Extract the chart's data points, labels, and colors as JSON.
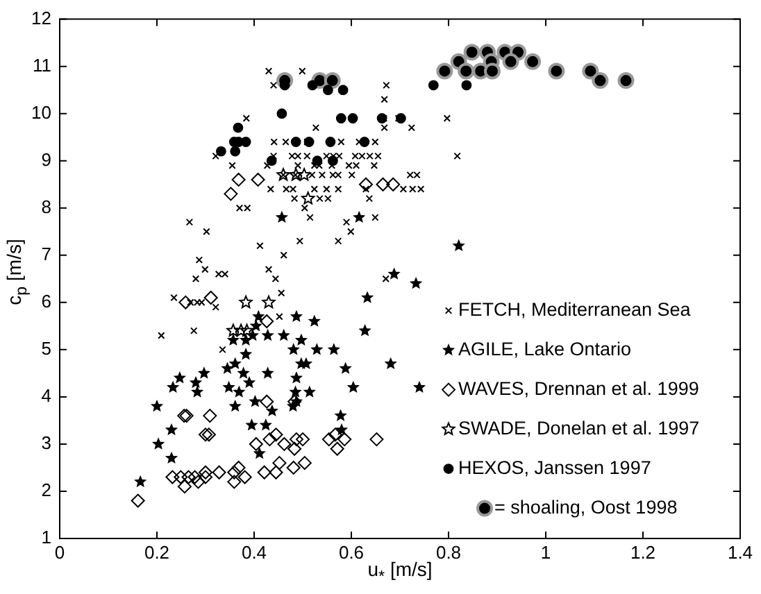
{
  "chart_data": {
    "type": "scatter",
    "xlabel": "u$_{*}$ [m/s]",
    "ylabel": "c$_{p}$ [m/s]",
    "xlim": [
      0,
      1.4
    ],
    "xticks": [
      0,
      0.2,
      0.4,
      0.6,
      0.8,
      1,
      1.2,
      1.4
    ],
    "ylim": [
      1,
      12
    ],
    "yticks": [
      1,
      2,
      3,
      4,
      5,
      6,
      7,
      8,
      9,
      10,
      11,
      12
    ],
    "legend": "right",
    "series": [
      {
        "name": "FETCH, Mediterranean Sea",
        "color": "#000000",
        "marker": "cross",
        "x": [
          0.43,
          0.499,
          0.44,
          0.672,
          0.668,
          0.384,
          0.667,
          0.697,
          0.797,
          0.527,
          0.668,
          0.724,
          0.441,
          0.465,
          0.509,
          0.579,
          0.616,
          0.649,
          0.321,
          0.44,
          0.478,
          0.49,
          0.509,
          0.549,
          0.563,
          0.575,
          0.608,
          0.622,
          0.638,
          0.655,
          0.818,
          0.355,
          0.427,
          0.49,
          0.524,
          0.534,
          0.56,
          0.595,
          0.61,
          0.647,
          0.46,
          0.485,
          0.519,
          0.54,
          0.562,
          0.573,
          0.601,
          0.721,
          0.735,
          0.434,
          0.466,
          0.48,
          0.524,
          0.549,
          0.573,
          0.63,
          0.707,
          0.726,
          0.743,
          0.483,
          0.535,
          0.552,
          0.637,
          0.37,
          0.386,
          0.504,
          0.515,
          0.649,
          0.59,
          0.599,
          0.267,
          0.302,
          0.494,
          0.573,
          0.412,
          0.461,
          0.287,
          0.299,
          0.43,
          0.327,
          0.34,
          0.28,
          0.444,
          0.456,
          0.235,
          0.269,
          0.283,
          0.292,
          0.321,
          0.209,
          0.276,
          0.335,
          0.452,
          0.671
        ],
        "values": [
          10.9,
          10.9,
          10.6,
          10.6,
          10.3,
          9.9,
          9.9,
          9.9,
          9.9,
          9.7,
          9.7,
          9.7,
          9.4,
          9.4,
          9.4,
          9.4,
          9.4,
          9.4,
          9.1,
          9.1,
          9.1,
          9.1,
          9.1,
          9.1,
          9.1,
          9.1,
          9.1,
          9.1,
          9.1,
          9.1,
          9.1,
          8.9,
          8.9,
          8.9,
          8.9,
          8.9,
          8.9,
          8.9,
          8.9,
          8.9,
          8.7,
          8.7,
          8.7,
          8.7,
          8.7,
          8.7,
          8.7,
          8.7,
          8.7,
          8.4,
          8.4,
          8.4,
          8.4,
          8.4,
          8.4,
          8.4,
          8.4,
          8.4,
          8.4,
          8.2,
          8.2,
          8.2,
          8.2,
          8,
          8,
          8,
          7.8,
          7.8,
          7.7,
          7.5,
          7.7,
          7.5,
          7.3,
          7.3,
          7.2,
          7,
          6.9,
          6.7,
          6.7,
          6.6,
          6.6,
          6.5,
          6.5,
          6.2,
          6.1,
          6,
          6,
          6,
          5.9,
          5.3,
          5.4,
          5,
          5.7,
          6.5
        ]
      },
      {
        "name": "AGILE, Lake Ontario",
        "color": "#000000",
        "marker": "star",
        "x": [
          0.166,
          0.203,
          0.2,
          0.23,
          0.23,
          0.233,
          0.247,
          0.28,
          0.283,
          0.297,
          0.345,
          0.357,
          0.383,
          0.361,
          0.348,
          0.361,
          0.369,
          0.378,
          0.383,
          0.39,
          0.395,
          0.402,
          0.397,
          0.404,
          0.409,
          0.428,
          0.428,
          0.424,
          0.437,
          0.411,
          0.461,
          0.487,
          0.497,
          0.481,
          0.497,
          0.507,
          0.487,
          0.485,
          0.487,
          0.48,
          0.514,
          0.524,
          0.529,
          0.564,
          0.588,
          0.604,
          0.578,
          0.58,
          0.633,
          0.628,
          0.681,
          0.688,
          0.733,
          0.74,
          0.821,
          0.457,
          0.616
        ],
        "values": [
          2.2,
          3,
          3.8,
          3.3,
          2.7,
          4.2,
          4.4,
          4.3,
          4.1,
          4.5,
          4.6,
          5.2,
          5.2,
          3.8,
          4.2,
          4.7,
          4.1,
          4.5,
          4.9,
          4.3,
          3.4,
          3.9,
          5.3,
          5.5,
          5.7,
          5.3,
          4.5,
          3.4,
          3.7,
          2.8,
          5.3,
          5.7,
          5.2,
          5,
          4.7,
          4.7,
          4.4,
          4.1,
          3.9,
          3.8,
          4.1,
          5.6,
          5,
          5,
          4.6,
          4.2,
          3.6,
          3.3,
          6.1,
          5.4,
          4.7,
          6.6,
          6.4,
          4.2,
          7.2,
          7.8,
          7.8
        ]
      },
      {
        "name": "WAVES, Drennan et al. 1999",
        "color": "#000000",
        "marker": "diamond",
        "x": [
          0.368,
          0.408,
          0.352,
          0.63,
          0.665,
          0.686,
          0.259,
          0.311,
          0.256,
          0.261,
          0.309,
          0.3,
          0.307,
          0.426,
          0.483,
          0.426,
          0.445,
          0.404,
          0.432,
          0.462,
          0.487,
          0.5,
          0.483,
          0.452,
          0.504,
          0.368,
          0.359,
          0.328,
          0.3,
          0.232,
          0.249,
          0.265,
          0.278,
          0.285,
          0.257,
          0.3,
          0.359,
          0.381,
          0.421,
          0.445,
          0.481,
          0.554,
          0.567,
          0.586,
          0.571,
          0.652,
          0.161
        ],
        "values": [
          8.6,
          8.6,
          8.3,
          8.5,
          8.5,
          8.5,
          6,
          6.1,
          3.6,
          3.6,
          3.6,
          3.2,
          3.2,
          3.9,
          3.9,
          5.6,
          3.2,
          3,
          3.1,
          3,
          3.1,
          3.1,
          2.9,
          2.6,
          2.6,
          2.5,
          2.4,
          2.4,
          2.4,
          2.3,
          2.3,
          2.3,
          2.3,
          2.2,
          2.1,
          2.3,
          2.2,
          2.3,
          2.4,
          2.4,
          2.5,
          3.1,
          3.2,
          3.1,
          2.9,
          3.1,
          1.8
        ]
      },
      {
        "name": "SWADE, Donelan et al. 1997",
        "color": "#000000",
        "marker": "star",
        "x": [
          0.46,
          0.486,
          0.503,
          0.511,
          0.383,
          0.43,
          0.357,
          0.373,
          0.385
        ],
        "values": [
          8.7,
          8.7,
          8.7,
          8.2,
          6,
          6,
          5.4,
          5.4,
          5.4
        ]
      },
      {
        "name": "HEXOS, Janssen 1997",
        "color": "#000000",
        "marker": "circle",
        "x": [
          0.463,
          0.52,
          0.552,
          0.583,
          0.457,
          0.579,
          0.603,
          0.663,
          0.702,
          0.769,
          0.837,
          0.367,
          0.359,
          0.368,
          0.383,
          0.486,
          0.513,
          0.557,
          0.627,
          0.332,
          0.361,
          0.436,
          0.53,
          0.562
        ],
        "values": [
          10.6,
          10.6,
          10.5,
          10.5,
          10,
          9.9,
          9.9,
          9.9,
          9.9,
          10.6,
          10.6,
          9.7,
          9.4,
          9.4,
          9.4,
          9.4,
          9.4,
          9.4,
          9.4,
          9.2,
          9.2,
          9,
          9,
          9
        ]
      },
      {
        "name": "= shoaling, Oost 1998",
        "color": "#000000",
        "marker": "circle",
        "x": [
          0.463,
          0.535,
          0.561,
          0.792,
          0.821,
          0.848,
          0.88,
          0.888,
          0.836,
          0.866,
          0.89,
          0.916,
          0.943,
          0.928,
          0.973,
          1.022,
          1.092,
          1.112,
          1.165
        ],
        "values": [
          10.7,
          10.7,
          10.7,
          10.9,
          11.1,
          11.3,
          11.3,
          11.1,
          10.9,
          10.9,
          10.9,
          11.3,
          11.3,
          11.1,
          11.1,
          10.9,
          10.9,
          10.7,
          10.7
        ]
      }
    ]
  }
}
